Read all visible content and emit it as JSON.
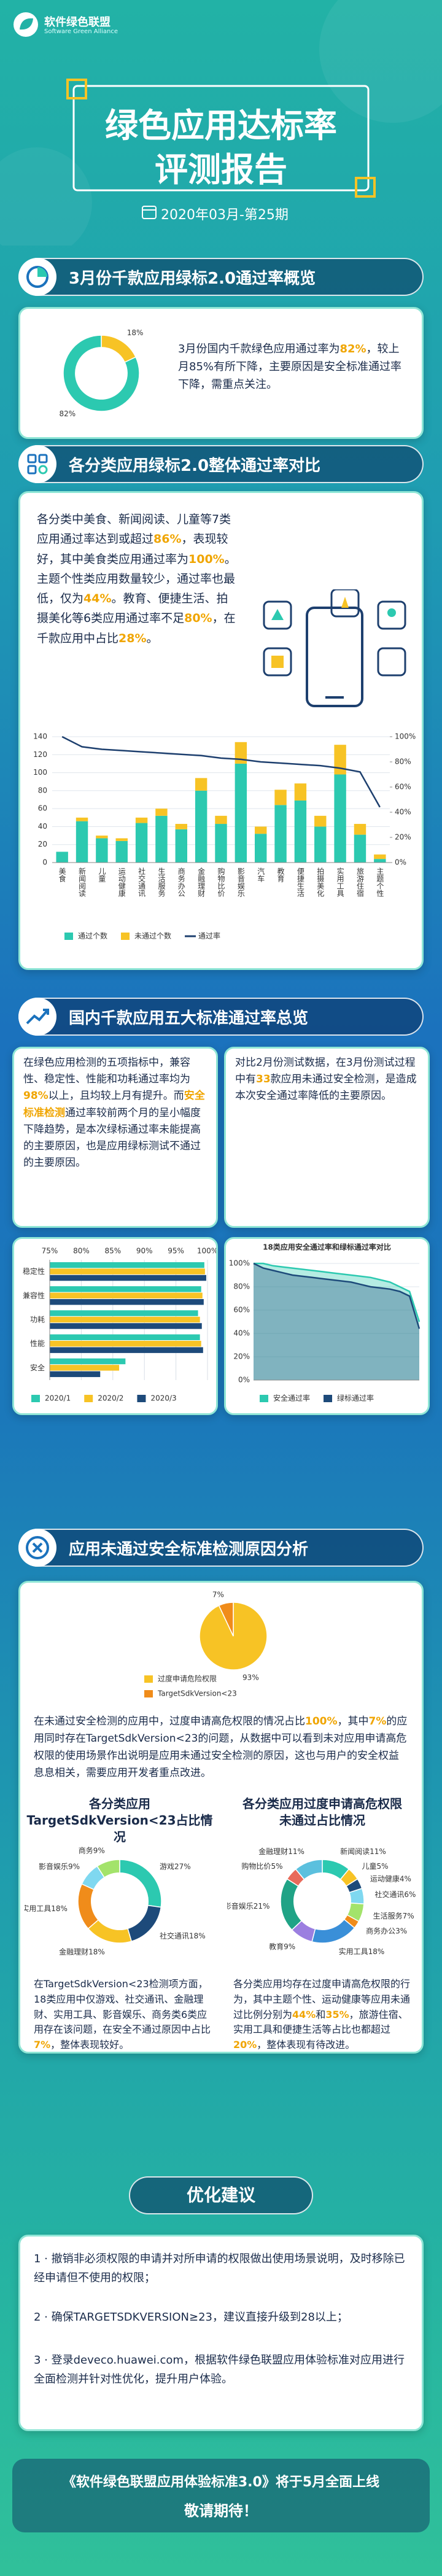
{
  "header": {
    "org": "软件绿色联盟",
    "org_en": "Software Green Alliance",
    "title": [
      "绿色应用达标率",
      "评测报告"
    ],
    "issue": "2020年03月-第25期"
  },
  "overview": {
    "heading": "3月份千款应用绿标2.0通过率概览",
    "text": [
      "3月份国内千款绿色应用通过率为",
      "82%",
      "，较上月85%有所下降，主要原因是安全标准通过率下降，需重点关注。"
    ]
  },
  "category": {
    "heading": "各分类应用绿标2.0整体通过率对比",
    "text": [
      "各分类中美食、新闻阅读、儿童等7类应用通过率达到或超过",
      "86%",
      "，表现较好，其中美食类应用通过率为",
      "100%",
      "。主题个性类应用数量较少，通过率也最低，仅为",
      "44%",
      "。教育、便捷生活、拍摄美化等6类应用通过率不足",
      "80%",
      "，在千款应用中占比",
      "28%",
      "。"
    ]
  },
  "standards": {
    "heading": "国内千款应用五大标准通过率总览",
    "left_text": [
      "在绿色应用检测的五项指标中，兼容性、稳定性、性能和功耗通过率均为",
      "98%",
      "以上，且均较上月有提升。而",
      "安全标准检测",
      "通过率较前两个月的呈小幅度下降趋势，是本次绿标通过率未能提高的主要原因，也是应用绿标测试不通过的主要原因。"
    ],
    "right_text": [
      "对比2月份测试数据，在3月份测试过程中有",
      "33",
      "款应用未通过安全检测，是造成本次安全通过率降低的主要原因。"
    ]
  },
  "security": {
    "heading": "应用未通过安全标准检测原因分析",
    "text": [
      "在未通过安全检测的应用中，过度申请高危权限的情况占比",
      "100%",
      "，其中",
      "7%",
      "的应用同时存在TargetSdkVersion<23的问题，从数据中可以看到未对应用申请高危权限的使用场景作出说明是应用未通过安全检测的原因，这也与用户的安全权益息息相关，需要应用开发者重点改进。"
    ],
    "left_text": [
      "在TargetSdkVersion<23检测项方面，18类应用中仅游戏、社交通讯、金融理财、实用工具、影音娱乐、商务类6类应用存在该问题，在安全不通过原因中占比",
      "7%",
      "，整体表现较好。"
    ],
    "right_text": [
      "各分类应用均存在过度申请高危权限的行为，其中主题个性、运动健康等应用未通过比例分别为",
      "44%",
      "和",
      "35%",
      "，旅游住宿、实用工具和便捷生活等占比也都超过",
      "20%",
      "，整体表现有待改进。"
    ]
  },
  "advice": {
    "heading": "优化建议",
    "items": [
      "1 · 撤销非必须权限的申请并对所申请的权限做出使用场景说明，及时移除已经申请但不使用的权限；",
      "2 · 确保TARGETSDKVERSION≥23，建议直接升级到28以上；",
      "3 · 登录deveco.huawei.com，根据软件绿色联盟应用体验标准对应用进行全面检测并针对性优化，提升用户体验。"
    ]
  },
  "footer": [
    "《软件绿色联盟应用体验标准3.0》将于5月全面上线",
    "敬请期待！"
  ],
  "chart_data": [
    {
      "type": "pie",
      "donut": true,
      "values": [
        18,
        82
      ],
      "value_labels": [
        "18%",
        "82%"
      ],
      "colors": [
        "#f7c325",
        "#2cc9b0"
      ]
    },
    {
      "type": "bar",
      "stacked": true,
      "grid": true,
      "legend": "bottom",
      "categories": [
        "美食",
        "新闻阅读",
        "儿童",
        "运动健康",
        "社交通讯",
        "生活服务",
        "商务办公",
        "金融理财",
        "购物比价",
        "影音娱乐",
        "汽车",
        "教育",
        "便捷生活",
        "拍摄美化",
        "实用工具",
        "旅游住宿",
        "主题个性"
      ],
      "series": [
        {
          "name": "通过个数",
          "color": "#2cc9b0",
          "values": [
            12,
            46,
            27,
            24,
            44,
            52,
            37,
            80,
            43,
            110,
            32,
            64,
            69,
            40,
            98,
            31,
            4
          ]
        },
        {
          "name": "未通过个数",
          "color": "#f7c325",
          "values": [
            0,
            4,
            3,
            3,
            6,
            8,
            6,
            14,
            9,
            24,
            8,
            17,
            19,
            12,
            33,
            12,
            5
          ]
        },
        {
          "name": "通过率",
          "color": "#1d3f6e",
          "axis": "y2",
          "values": [
            100,
            92,
            90,
            89,
            88,
            87,
            86,
            85,
            83,
            82,
            80,
            79,
            78,
            77,
            75,
            72,
            44
          ]
        }
      ],
      "ylim": [
        0,
        140
      ],
      "yticks": [
        0,
        20,
        40,
        60,
        80,
        100,
        120,
        140
      ],
      "y2lim": [
        0,
        100
      ],
      "y2ticks": [
        {
          "value": 0,
          "label": "0%"
        },
        {
          "value": 20,
          "label": "20%"
        },
        {
          "value": 40,
          "label": "40%"
        },
        {
          "value": 60,
          "label": "60%"
        },
        {
          "value": 80,
          "label": "80%"
        },
        {
          "value": 100,
          "label": "100%"
        }
      ]
    },
    {
      "type": "bar",
      "orientation": "horizontal",
      "grid": true,
      "legend": "bottom",
      "xtick_position": "top",
      "categories": [
        "稳定性",
        "兼容性",
        "功耗",
        "性能",
        "安全"
      ],
      "series": [
        {
          "name": "2020/1",
          "color": "#2cc9b0",
          "values": [
            99.5,
            99.0,
            98.5,
            98.8,
            87
          ]
        },
        {
          "name": "2020/2",
          "color": "#f7c325",
          "values": [
            99.6,
            99.2,
            98.8,
            99.0,
            86
          ]
        },
        {
          "name": "2020/3",
          "color": "#1d4a7a",
          "values": [
            99.8,
            99.4,
            99.1,
            99.3,
            83
          ]
        }
      ],
      "xlim": [
        75,
        100
      ],
      "xticks": [
        {
          "value": 75,
          "label": "75%"
        },
        {
          "value": 80,
          "label": "80%"
        },
        {
          "value": 85,
          "label": "85%"
        },
        {
          "value": 90,
          "label": "90%"
        },
        {
          "value": 95,
          "label": "95%"
        },
        {
          "value": 100,
          "label": "100%"
        }
      ]
    },
    {
      "type": "line",
      "area": true,
      "grid": true,
      "legend": "bottom",
      "title": "18类应用安全通过率和绿标通过率对比",
      "categories": [
        null,
        null,
        null,
        null,
        null,
        null,
        null,
        null,
        null,
        null,
        null,
        null,
        null,
        null,
        null,
        null,
        null,
        null
      ],
      "series": [
        {
          "name": "安全通过率",
          "color": "#2cc9b0",
          "values": [
            100,
            100,
            98,
            97,
            96,
            95,
            94,
            93,
            92,
            91,
            90,
            89,
            88,
            86,
            84,
            80,
            76,
            50
          ]
        },
        {
          "name": "绿标通过率",
          "color": "#1d4a7a",
          "values": [
            100,
            96,
            94,
            92,
            90,
            89,
            88,
            87,
            86,
            85,
            84,
            82,
            80,
            79,
            78,
            76,
            72,
            44
          ]
        }
      ],
      "ylim": [
        0,
        100
      ],
      "yticks": [
        {
          "value": 0,
          "label": "0%"
        },
        {
          "value": 20,
          "label": "20%"
        },
        {
          "value": 40,
          "label": "40%"
        },
        {
          "value": 60,
          "label": "60%"
        },
        {
          "value": 80,
          "label": "80%"
        },
        {
          "value": 100,
          "label": "100%"
        }
      ]
    },
    {
      "type": "pie",
      "legend": "bottom",
      "categories": [
        "过度申请危险权限",
        "TargetSdkVersion<23"
      ],
      "values": [
        93,
        7
      ],
      "value_labels": [
        "93%",
        "7%"
      ],
      "colors": [
        "#f7c325",
        "#f08c1a"
      ]
    },
    {
      "type": "pie",
      "donut": true,
      "title": [
        "各分类应用",
        "TargetSdkVersion<23占比情况"
      ],
      "categories": [
        "游戏",
        "社交通讯",
        "金融理财",
        "实用工具",
        "影音娱乐",
        "商务"
      ],
      "values": [
        27,
        18,
        18,
        18,
        9,
        9
      ],
      "value_labels": [
        "27%",
        "18%",
        "18%",
        "18%",
        "9%",
        "9%"
      ],
      "colors": [
        "#2cc9b0",
        "#1d4a7a",
        "#f7c325",
        "#f08c1a",
        "#7fd8f0",
        "#a3e36b"
      ]
    },
    {
      "type": "pie",
      "donut": true,
      "title": [
        "各分类应用过度申请高危权限",
        "未通过占比情况"
      ],
      "categories": [
        "新闻阅读",
        "儿童",
        "运动健康",
        "社交通讯",
        "生活服务",
        "商务办公",
        "实用工具",
        "教育",
        "影音娱乐",
        "购物比价",
        "金融理财"
      ],
      "values": [
        11,
        5,
        4,
        6,
        7,
        3,
        18,
        9,
        21,
        5,
        11
      ],
      "value_labels": [
        "11%",
        "5%",
        "4%",
        "6%",
        "7%",
        "3%",
        "18%",
        "9%",
        "21%",
        "5%",
        "11%"
      ],
      "colors": [
        "#2cc9b0",
        "#f7c325",
        "#1d4a7a",
        "#7fd8f0",
        "#a3e36b",
        "#f08c1a",
        "#3a8fd8",
        "#9b7fe0",
        "#20a386",
        "#e86a5a",
        "#5bc0de"
      ]
    }
  ]
}
